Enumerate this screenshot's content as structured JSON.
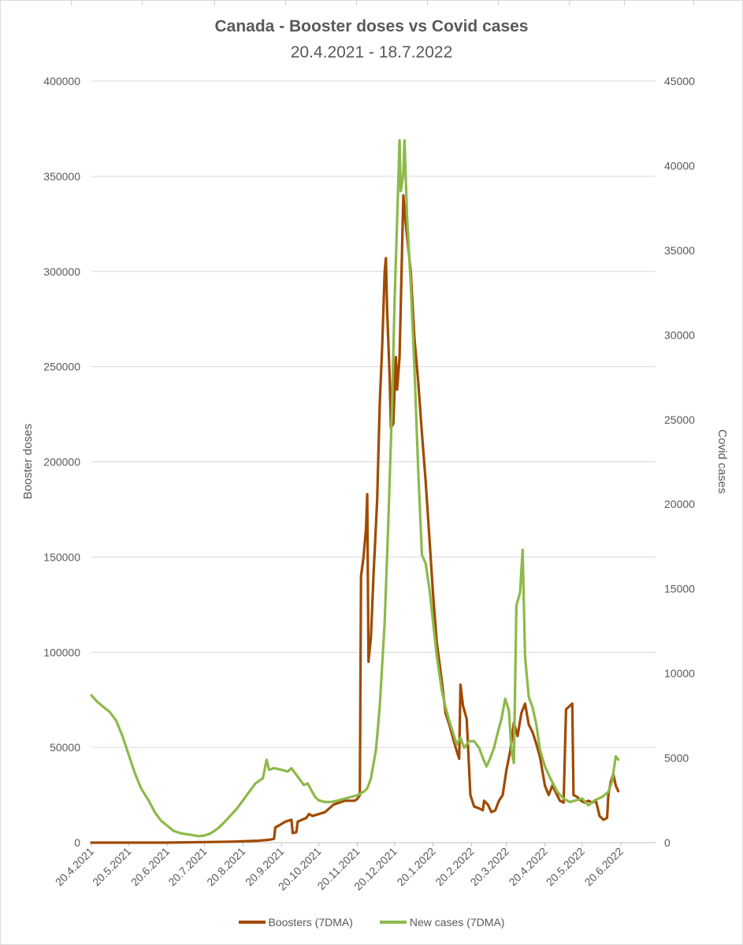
{
  "chart_data": {
    "type": "line",
    "title": "Canada - Booster doses vs Covid cases",
    "subtitle": "20.4.2021 - 18.7.2022",
    "ylabel": "Booster doses",
    "y2label": "Covid cases",
    "ylim": [
      0,
      400000
    ],
    "y2lim": [
      0,
      45000
    ],
    "yticks": [
      "0",
      "50000",
      "100000",
      "150000",
      "200000",
      "250000",
      "300000",
      "350000",
      "400000"
    ],
    "y2ticks": [
      "0",
      "5000",
      "10000",
      "15000",
      "20000",
      "25000",
      "30000",
      "35000",
      "40000",
      "45000"
    ],
    "xlim": [
      "20.4.2021",
      "18.7.2022"
    ],
    "xticks": [
      "20.4.2021",
      "20.5.2021",
      "20.6.2021",
      "20.7.2021",
      "20.8.2021",
      "20.9.2021",
      "20.10.2021",
      "20.11.2021",
      "20.12.2021",
      "20.1.2022",
      "20.2.2022",
      "20.3.2022",
      "20.4.2022",
      "20.5.2022",
      "20.6.2022"
    ],
    "grid": true,
    "legend_position": "bottom",
    "series": [
      {
        "name": "Boosters (7DMA)",
        "axis": "left",
        "color": "#A04A00",
        "points": [
          [
            "20.4.2021",
            0
          ],
          [
            "20.5.2021",
            0
          ],
          [
            "20.6.2021",
            0
          ],
          [
            "20.7.2021",
            300
          ],
          [
            "10.8.2021",
            500
          ],
          [
            "1.9.2021",
            1000
          ],
          [
            "10.9.2021",
            1500
          ],
          [
            "14.9.2021",
            2000
          ],
          [
            "15.9.2021",
            8000
          ],
          [
            "18.9.2021",
            9000
          ],
          [
            "23.9.2021",
            11000
          ],
          [
            "28.9.2021",
            12000
          ],
          [
            "29.9.2021",
            5000
          ],
          [
            "2.10.2021",
            5500
          ],
          [
            "3.10.2021",
            11000
          ],
          [
            "10.10.2021",
            13000
          ],
          [
            "12.10.2021",
            15000
          ],
          [
            "15.10.2021",
            14000
          ],
          [
            "20.10.2021",
            15000
          ],
          [
            "25.10.2021",
            16000
          ],
          [
            "1.11.2021",
            20000
          ],
          [
            "10.11.2021",
            22000
          ],
          [
            "18.11.2021",
            22000
          ],
          [
            "20.11.2021",
            23000
          ],
          [
            "22.11.2021",
            25000
          ],
          [
            "23.11.2021",
            140000
          ],
          [
            "25.11.2021",
            150000
          ],
          [
            "27.11.2021",
            165000
          ],
          [
            "28.11.2021",
            183000
          ],
          [
            "29.11.2021",
            95000
          ],
          [
            "1.12.2021",
            108000
          ],
          [
            "3.12.2021",
            140000
          ],
          [
            "6.12.2021",
            180000
          ],
          [
            "8.12.2021",
            230000
          ],
          [
            "10.12.2021",
            260000
          ],
          [
            "12.12.2021",
            300000
          ],
          [
            "13.12.2021",
            307000
          ],
          [
            "14.12.2021",
            280000
          ],
          [
            "16.12.2021",
            245000
          ],
          [
            "17.12.2021",
            218000
          ],
          [
            "19.12.2021",
            220000
          ],
          [
            "21.12.2021",
            255000
          ],
          [
            "22.12.2021",
            238000
          ],
          [
            "24.12.2021",
            255000
          ],
          [
            "27.12.2021",
            340000
          ],
          [
            "29.12.2021",
            325000
          ],
          [
            "2.1.2022",
            300000
          ],
          [
            "5.1.2022",
            265000
          ],
          [
            "8.1.2022",
            242000
          ],
          [
            "11.1.2022",
            215000
          ],
          [
            "14.1.2022",
            190000
          ],
          [
            "17.1.2022",
            160000
          ],
          [
            "20.1.2022",
            130000
          ],
          [
            "23.1.2022",
            105000
          ],
          [
            "27.1.2022",
            85000
          ],
          [
            "30.1.2022",
            68000
          ],
          [
            "2.2.2022",
            62000
          ],
          [
            "5.2.2022",
            55000
          ],
          [
            "8.2.2022",
            48000
          ],
          [
            "10.2.2022",
            44000
          ],
          [
            "11.2.2022",
            83000
          ],
          [
            "13.2.2022",
            72000
          ],
          [
            "16.2.2022",
            65000
          ],
          [
            "19.2.2022",
            25000
          ],
          [
            "22.2.2022",
            19000
          ],
          [
            "26.2.2022",
            18000
          ],
          [
            "1.3.2022",
            17000
          ],
          [
            "2.3.2022",
            22000
          ],
          [
            "5.3.2022",
            20000
          ],
          [
            "8.3.2022",
            16000
          ],
          [
            "11.3.2022",
            17000
          ],
          [
            "14.3.2022",
            22000
          ],
          [
            "17.3.2022",
            25000
          ],
          [
            "20.3.2022",
            38000
          ],
          [
            "23.3.2022",
            48000
          ],
          [
            "26.3.2022",
            63000
          ],
          [
            "29.3.2022",
            56000
          ],
          [
            "1.4.2022",
            68000
          ],
          [
            "4.4.2022",
            73000
          ],
          [
            "7.4.2022",
            62000
          ],
          [
            "10.4.2022",
            58000
          ],
          [
            "13.4.2022",
            52000
          ],
          [
            "16.4.2022",
            45000
          ],
          [
            "20.4.2022",
            30000
          ],
          [
            "23.4.2022",
            25000
          ],
          [
            "26.4.2022",
            30000
          ],
          [
            "29.4.2022",
            26000
          ],
          [
            "2.5.2022",
            22000
          ],
          [
            "5.5.2022",
            21000
          ],
          [
            "7.5.2022",
            70000
          ],
          [
            "12.5.2022",
            73000
          ],
          [
            "13.5.2022",
            25000
          ],
          [
            "16.5.2022",
            24000
          ],
          [
            "19.5.2022",
            22000
          ],
          [
            "22.5.2022",
            21000
          ],
          [
            "25.5.2022",
            22000
          ],
          [
            "28.5.2022",
            21000
          ],
          [
            "31.5.2022",
            22000
          ],
          [
            "3.6.2022",
            14000
          ],
          [
            "6.6.2022",
            12000
          ],
          [
            "9.6.2022",
            13000
          ],
          [
            "10.6.2022",
            25000
          ],
          [
            "12.6.2022",
            32000
          ],
          [
            "14.6.2022",
            36000
          ],
          [
            "16.6.2022",
            30000
          ],
          [
            "18.6.2022",
            27000
          ]
        ]
      },
      {
        "name": "New cases (7DMA)",
        "axis": "right",
        "color": "#8DB94A",
        "points": [
          [
            "20.4.2021",
            8700
          ],
          [
            "25.4.2021",
            8300
          ],
          [
            "30.4.2021",
            8000
          ],
          [
            "5.5.2021",
            7700
          ],
          [
            "10.5.2021",
            7200
          ],
          [
            "15.5.2021",
            6300
          ],
          [
            "20.5.2021",
            5200
          ],
          [
            "25.5.2021",
            4100
          ],
          [
            "30.5.2021",
            3200
          ],
          [
            "5.6.2021",
            2500
          ],
          [
            "10.6.2021",
            1800
          ],
          [
            "15.6.2021",
            1300
          ],
          [
            "20.6.2021",
            1000
          ],
          [
            "25.6.2021",
            700
          ],
          [
            "1.7.2021",
            550
          ],
          [
            "10.7.2021",
            450
          ],
          [
            "15.7.2021",
            380
          ],
          [
            "20.7.2021",
            420
          ],
          [
            "25.7.2021",
            550
          ],
          [
            "31.7.2021",
            850
          ],
          [
            "5.8.2021",
            1200
          ],
          [
            "10.8.2021",
            1600
          ],
          [
            "15.8.2021",
            2000
          ],
          [
            "20.8.2021",
            2500
          ],
          [
            "25.8.2021",
            3000
          ],
          [
            "30.8.2021",
            3500
          ],
          [
            "5.9.2021",
            3800
          ],
          [
            "8.9.2021",
            4900
          ],
          [
            "10.9.2021",
            4300
          ],
          [
            "14.9.2021",
            4400
          ],
          [
            "20.9.2021",
            4300
          ],
          [
            "25.9.2021",
            4200
          ],
          [
            "28.9.2021",
            4400
          ],
          [
            "3.10.2021",
            3900
          ],
          [
            "8.10.2021",
            3400
          ],
          [
            "11.10.2021",
            3500
          ],
          [
            "14.10.2021",
            3100
          ],
          [
            "17.10.2021",
            2700
          ],
          [
            "20.10.2021",
            2500
          ],
          [
            "25.10.2021",
            2400
          ],
          [
            "30.10.2021",
            2400
          ],
          [
            "5.11.2021",
            2500
          ],
          [
            "10.11.2021",
            2600
          ],
          [
            "15.11.2021",
            2700
          ],
          [
            "20.11.2021",
            2800
          ],
          [
            "25.11.2021",
            3000
          ],
          [
            "28.11.2021",
            3200
          ],
          [
            "1.12.2021",
            3800
          ],
          [
            "5.12.2021",
            5500
          ],
          [
            "8.12.2021",
            8000
          ],
          [
            "12.12.2021",
            13000
          ],
          [
            "15.12.2021",
            19000
          ],
          [
            "18.12.2021",
            26000
          ],
          [
            "20.12.2021",
            32000
          ],
          [
            "23.12.2021",
            39000
          ],
          [
            "24.12.2021",
            41500
          ],
          [
            "25.12.2021",
            38500
          ],
          [
            "27.12.2021",
            39500
          ],
          [
            "28.12.2021",
            41500
          ],
          [
            "30.12.2021",
            37000
          ],
          [
            "2.1.2022",
            33000
          ],
          [
            "5.1.2022",
            28000
          ],
          [
            "8.1.2022",
            22000
          ],
          [
            "11.1.2022",
            17000
          ],
          [
            "14.1.2022",
            16500
          ],
          [
            "17.1.2022",
            15000
          ],
          [
            "20.1.2022",
            13000
          ],
          [
            "23.1.2022",
            11000
          ],
          [
            "27.1.2022",
            9000
          ],
          [
            "30.1.2022",
            8000
          ],
          [
            "2.2.2022",
            7200
          ],
          [
            "5.2.2022",
            6500
          ],
          [
            "8.2.2022",
            5800
          ],
          [
            "11.2.2022",
            6200
          ],
          [
            "14.2.2022",
            5600
          ],
          [
            "18.2.2022",
            6000
          ],
          [
            "22.2.2022",
            6000
          ],
          [
            "26.2.2022",
            5600
          ],
          [
            "1.3.2022",
            5000
          ],
          [
            "4.3.2022",
            4500
          ],
          [
            "7.3.2022",
            5000
          ],
          [
            "10.3.2022",
            5600
          ],
          [
            "13.3.2022",
            6500
          ],
          [
            "16.3.2022",
            7300
          ],
          [
            "19.3.2022",
            8500
          ],
          [
            "22.3.2022",
            7800
          ],
          [
            "24.3.2022",
            5500
          ],
          [
            "26.3.2022",
            4700
          ],
          [
            "28.3.2022",
            14000
          ],
          [
            "31.3.2022",
            14800
          ],
          [
            "2.4.2022",
            17300
          ],
          [
            "4.4.2022",
            11000
          ],
          [
            "7.4.2022",
            8600
          ],
          [
            "10.4.2022",
            8000
          ],
          [
            "13.4.2022",
            7000
          ],
          [
            "16.4.2022",
            5500
          ],
          [
            "20.4.2022",
            4500
          ],
          [
            "25.4.2022",
            3700
          ],
          [
            "30.4.2022",
            3000
          ],
          [
            "5.5.2022",
            2600
          ],
          [
            "10.5.2022",
            2400
          ],
          [
            "15.5.2022",
            2500
          ],
          [
            "20.5.2022",
            2600
          ],
          [
            "25.5.2022",
            2200
          ],
          [
            "30.5.2022",
            2500
          ],
          [
            "5.6.2022",
            2700
          ],
          [
            "10.6.2022",
            3000
          ],
          [
            "13.6.2022",
            3600
          ],
          [
            "16.6.2022",
            5100
          ],
          [
            "18.6.2022",
            4900
          ]
        ]
      }
    ]
  }
}
